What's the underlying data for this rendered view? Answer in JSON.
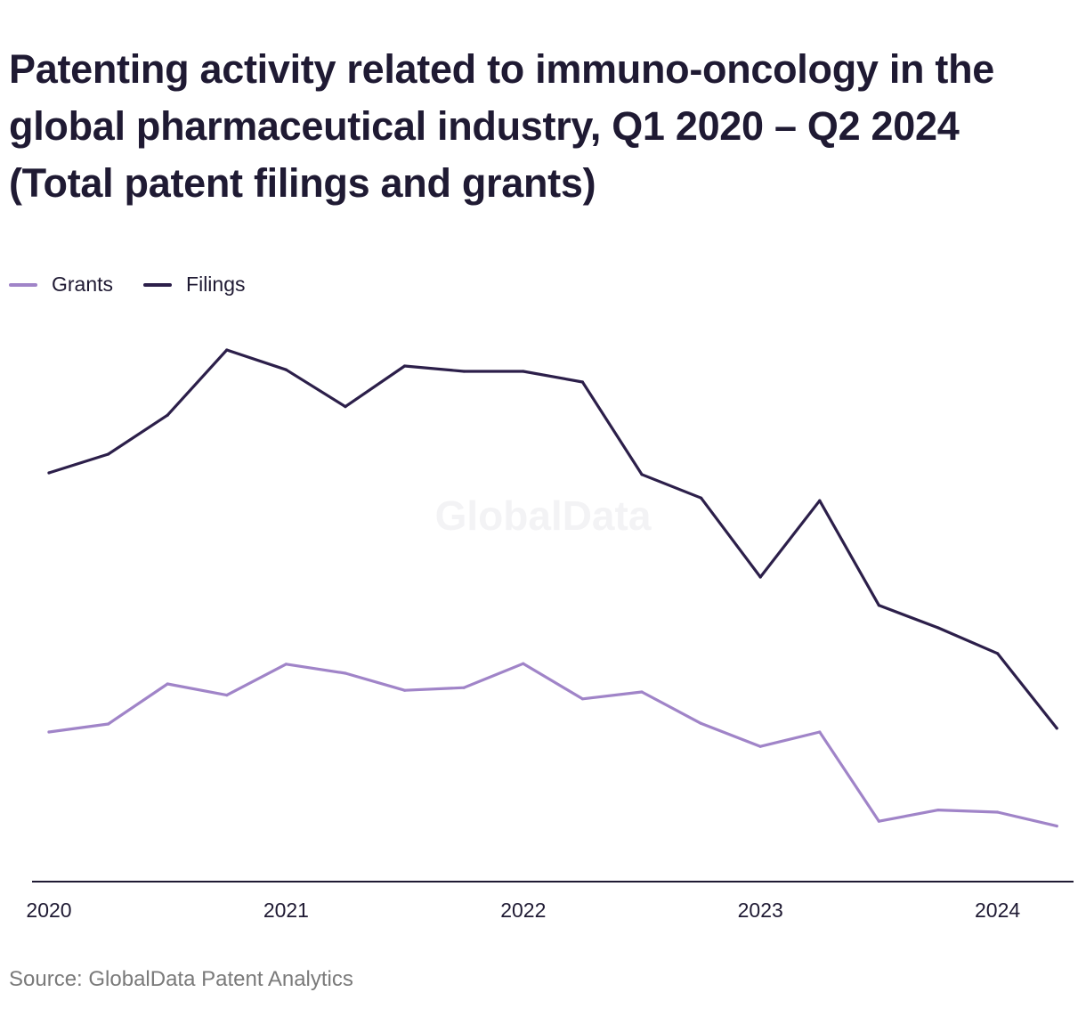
{
  "header": {
    "title": "Patenting activity related to immuno-oncology in the global pharmaceutical industry, Q1 2020 – Q2 2024 (Total patent filings and grants)"
  },
  "watermark": "GlobalData",
  "source": "Source: GlobalData Patent Analytics",
  "colors": {
    "grants": "#a084c8",
    "filings": "#2c1f4a",
    "axis": "#1f1a33",
    "watermark": "#f3f3f5"
  },
  "chart_data": {
    "type": "line",
    "x": [
      "Q1 2020",
      "Q2 2020",
      "Q3 2020",
      "Q4 2020",
      "Q1 2021",
      "Q2 2021",
      "Q3 2021",
      "Q4 2021",
      "Q1 2022",
      "Q2 2022",
      "Q3 2022",
      "Q4 2022",
      "Q1 2023",
      "Q2 2023",
      "Q3 2023",
      "Q4 2023",
      "Q1 2024",
      "Q2 2024"
    ],
    "x_tick_labels": [
      "2020",
      "2021",
      "2022",
      "2023",
      "2024"
    ],
    "x_tick_positions": [
      0,
      4,
      8,
      12,
      16
    ],
    "ylim": [
      0,
      1000
    ],
    "y_axis_visible": false,
    "grid": false,
    "legend_position": "top-left",
    "series": [
      {
        "name": "Grants",
        "values": [
          280,
          295,
          370,
          349,
          407,
          390,
          358,
          363,
          408,
          342,
          355,
          296,
          253,
          280,
          113,
          134,
          130,
          104
        ]
      },
      {
        "name": "Filings",
        "values": [
          765,
          800,
          873,
          995,
          958,
          889,
          965,
          955,
          955,
          935,
          762,
          718,
          570,
          713,
          517,
          475,
          427,
          287
        ]
      }
    ]
  }
}
